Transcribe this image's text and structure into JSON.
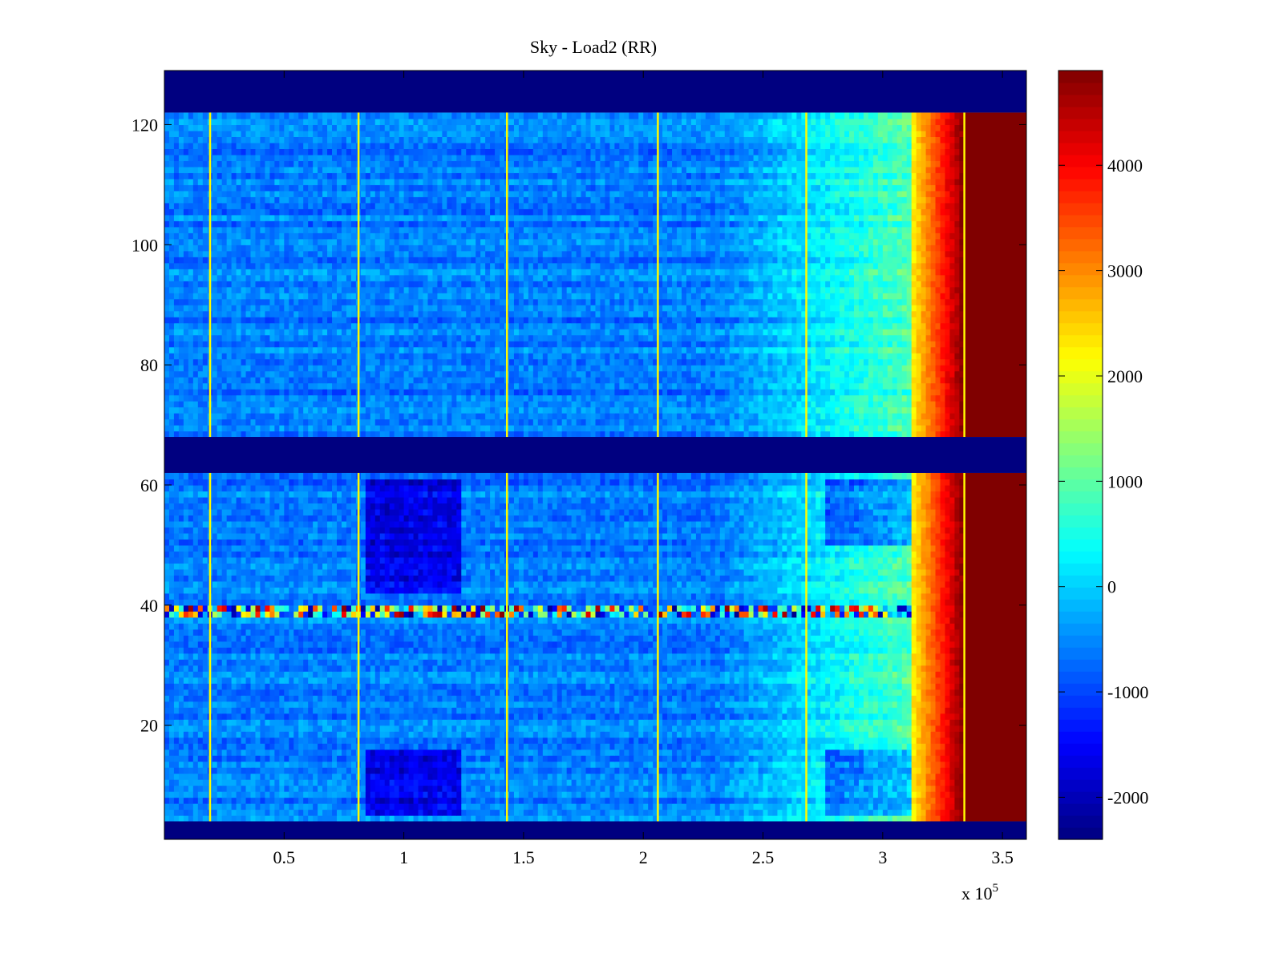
{
  "chart_data": {
    "type": "heatmap",
    "title": "Sky - Load2 (RR)",
    "xlabel": "",
    "ylabel": "",
    "x_multiplier_label": "x 10",
    "x_multiplier_exponent": "5",
    "xlim": [
      0,
      360000
    ],
    "ylim": [
      1,
      129
    ],
    "x_ticks": [
      50000,
      100000,
      150000,
      200000,
      250000,
      300000,
      350000
    ],
    "x_tick_labels": [
      "0.5",
      "1",
      "1.5",
      "2",
      "2.5",
      "3",
      "3.5"
    ],
    "y_ticks": [
      20,
      40,
      60,
      80,
      100,
      120
    ],
    "y_tick_labels": [
      "20",
      "40",
      "60",
      "80",
      "100",
      "120"
    ],
    "colormap": "jet",
    "color_range": [
      -2400,
      4900
    ],
    "colorbar_ticks": [
      -2000,
      -1000,
      0,
      1000,
      2000,
      3000,
      4000
    ],
    "colorbar_tick_labels": [
      "-2000",
      "-1000",
      "0",
      "1000",
      "2000",
      "3000",
      "4000"
    ],
    "masked_row_bands": [
      {
        "y_from": 1,
        "y_to": 4,
        "value": -2400
      },
      {
        "y_from": 62,
        "y_to": 68,
        "value": -2400
      },
      {
        "y_from": 122,
        "y_to": 129,
        "value": -2400
      }
    ],
    "saturated_column_band": {
      "x_from": 334000,
      "x_to": 360000,
      "value": 4900
    },
    "hot_edge_x_range": [
      312000,
      334000
    ],
    "spike_columns_x": [
      19000,
      81000,
      143000,
      206000,
      268000,
      334000
    ],
    "anomalous_row_y": 39,
    "cold_regions": [
      {
        "x_from": 84000,
        "x_to": 124000,
        "y_from": 42,
        "y_to": 61
      },
      {
        "x_from": 84000,
        "x_to": 124000,
        "y_from": 5,
        "y_to": 16
      },
      {
        "x_from": 277000,
        "x_to": 311000,
        "y_from": 50,
        "y_to": 61
      },
      {
        "x_from": 277000,
        "x_to": 311000,
        "y_from": 5,
        "y_to": 16
      }
    ],
    "typical_background_value": -600,
    "gradient_onset_x": 230000,
    "grid": false,
    "legend": "colorbar-right"
  }
}
